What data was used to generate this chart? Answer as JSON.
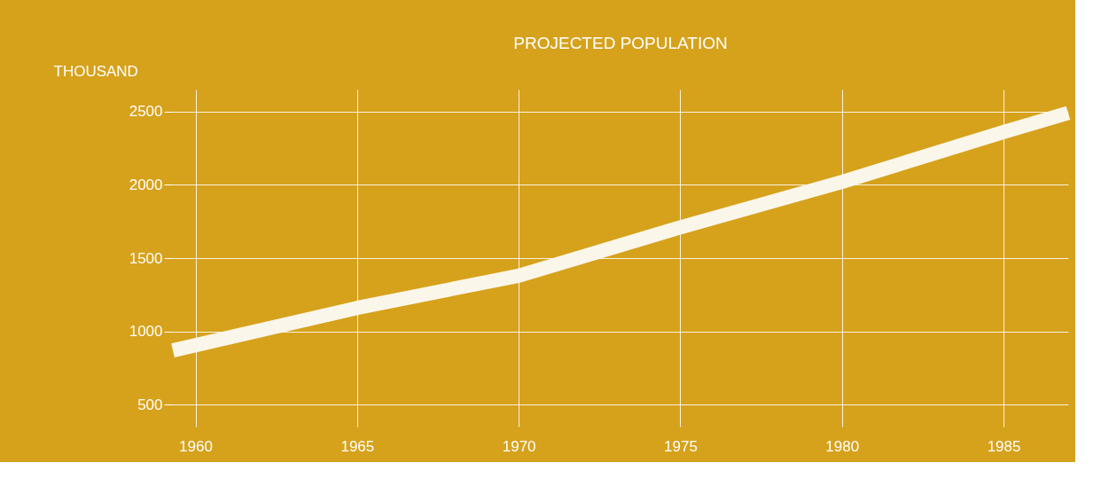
{
  "chart_data": {
    "type": "line",
    "title": "PROJECTED POPULATION",
    "ylabel": "THOUSAND",
    "x": [
      1959.3,
      1965,
      1970,
      1975,
      1980,
      1985,
      1987
    ],
    "series": [
      {
        "color": "#fbf6ea",
        "values": [
          870,
          1160,
          1380,
          1710,
          2020,
          2360,
          2490
        ]
      }
    ],
    "xlim": [
      1959.3,
      1987
    ],
    "ylim": [
      350,
      2650
    ],
    "xticks": [
      1960,
      1965,
      1970,
      1975,
      1980,
      1985
    ],
    "yticks": [
      500,
      1000,
      1500,
      2000,
      2500
    ],
    "grid": true,
    "line_style": "solid",
    "marker": "none"
  }
}
